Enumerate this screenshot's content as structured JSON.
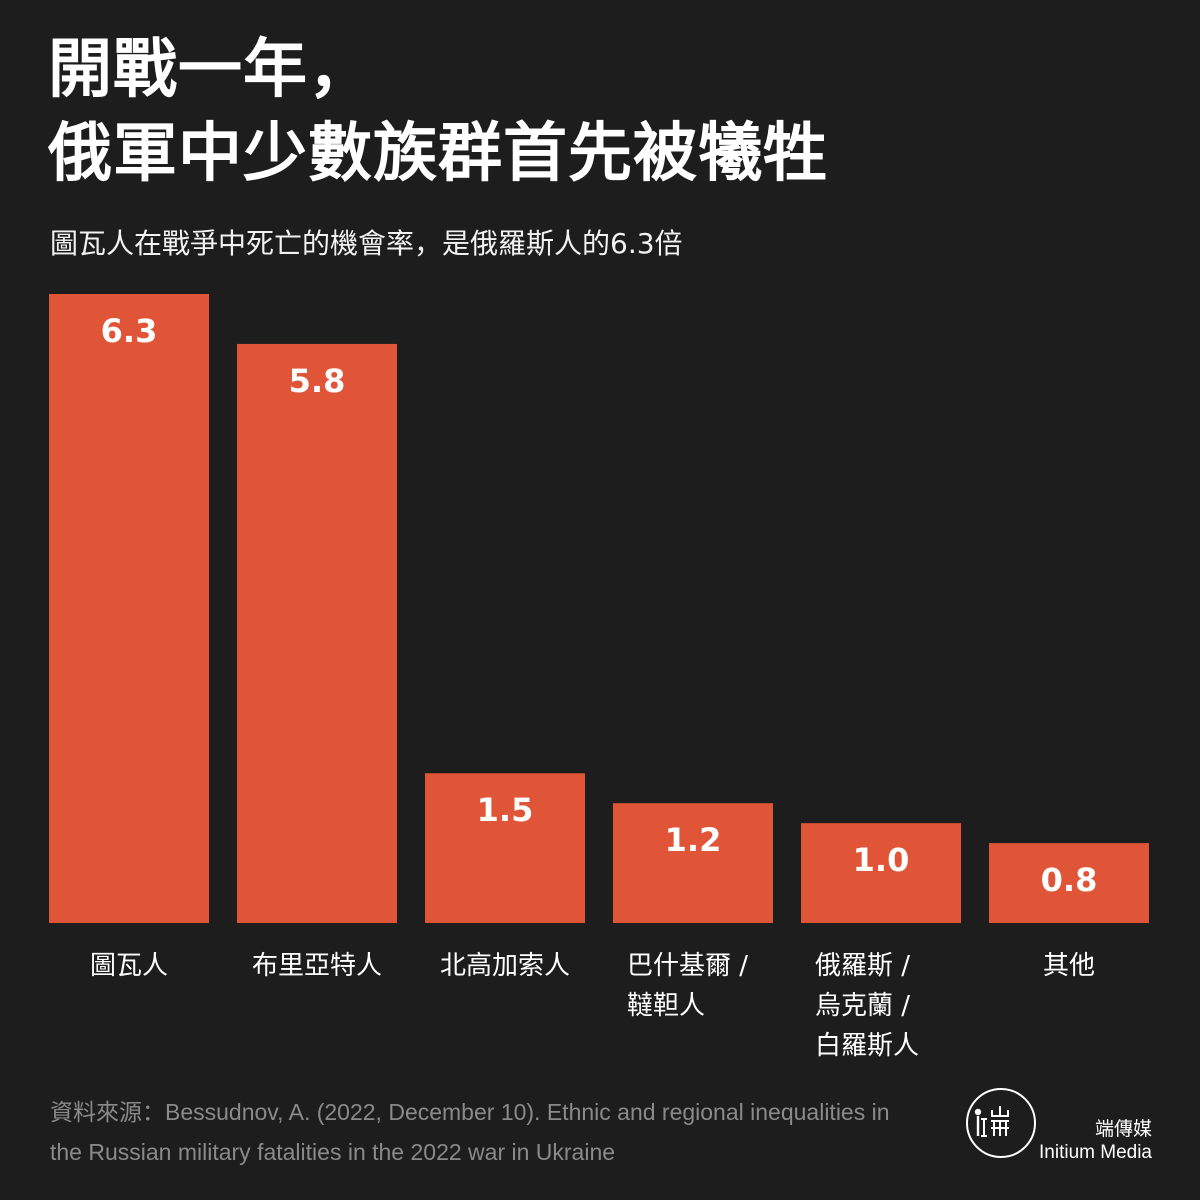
{
  "title_lines": [
    "開戰一年，",
    "俄軍中少數族群首先被犧牲"
  ],
  "subtitle": "圖瓦人在戰爭中死亡的機會率，是俄羅斯人的6.3倍",
  "source_lines": [
    "資料來源：Bessudnov, A. (2022, December 10). Ethnic and regional inequalities in",
    "the Russian military fatalities in the 2022 war in Ukraine"
  ],
  "logo": {
    "zh": "端傳媒",
    "en": "Initium Media",
    "icon": "initium-logo-icon"
  },
  "colors": {
    "background": "#1d1d1d",
    "bar": "#e05537",
    "text": "#ffffff",
    "muted": "#8a8a8a"
  },
  "chart_data": {
    "type": "bar",
    "categories": [
      [
        "圖瓦人"
      ],
      [
        "布里亞特人"
      ],
      [
        "北高加索人"
      ],
      [
        "巴什基爾 /",
        "韃靼人"
      ],
      [
        "俄羅斯 /",
        "烏克蘭 /",
        "白羅斯人"
      ],
      [
        "其他"
      ]
    ],
    "values": [
      6.3,
      5.8,
      1.5,
      1.2,
      1.0,
      0.8
    ],
    "value_labels": [
      "6.3",
      "5.8",
      "1.5",
      "1.2",
      "1.0",
      "0.8"
    ],
    "ylim": [
      0,
      6.3
    ],
    "grid": false,
    "legend": "none"
  }
}
